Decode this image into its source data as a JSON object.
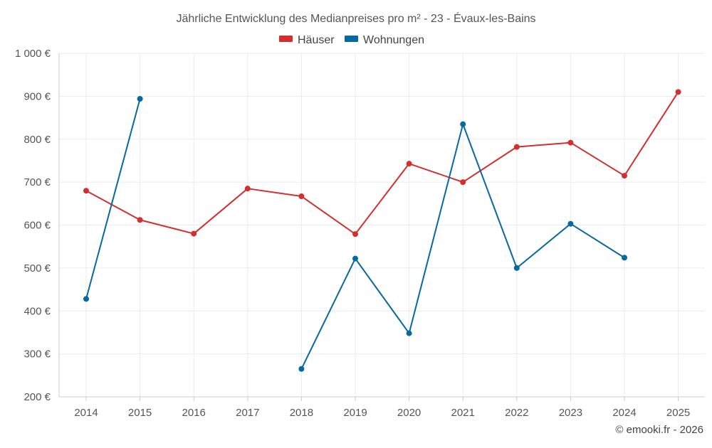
{
  "chart_data": {
    "type": "line",
    "title": "Jährliche Entwicklung des Medianpreises pro m² - 23 - Évaux-les-Bains",
    "categories": [
      "2014",
      "2015",
      "2016",
      "2017",
      "2018",
      "2019",
      "2020",
      "2021",
      "2022",
      "2023",
      "2024",
      "2025"
    ],
    "y_ticks": [
      200,
      300,
      400,
      500,
      600,
      700,
      800,
      900,
      1000
    ],
    "y_tick_labels": [
      "200 €",
      "300 €",
      "400 €",
      "500 €",
      "600 €",
      "700 €",
      "800 €",
      "900 €",
      "1 000 €"
    ],
    "ylim": [
      200,
      1000
    ],
    "grid": true,
    "legend_position": "top-center",
    "series": [
      {
        "name": "Häuser",
        "color": "#d32f2f",
        "values": [
          680,
          612,
          580,
          685,
          667,
          579,
          743,
          700,
          782,
          792,
          715,
          910
        ]
      },
      {
        "name": "Wohnungen",
        "color": "#0868a0",
        "values": [
          428,
          894,
          null,
          null,
          265,
          522,
          348,
          835,
          500,
          603,
          524,
          null
        ]
      }
    ]
  },
  "credit": "© emooki.fr - 2026"
}
